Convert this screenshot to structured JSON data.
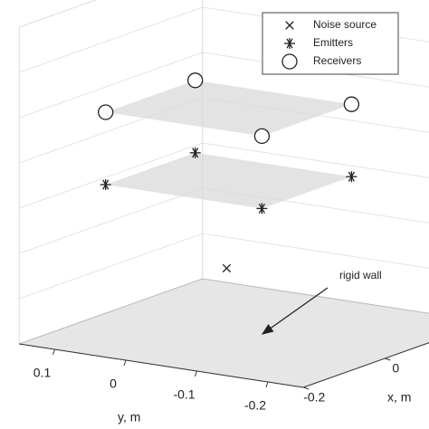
{
  "chart_data": {
    "type": "scatter3d",
    "xlabel": "x, m",
    "ylabel": "y, m",
    "xlim": [
      -0.2,
      0.25
    ],
    "ylim": [
      -0.25,
      0.15
    ],
    "zlim": [
      0,
      0.35
    ],
    "xticks": [
      -0.2,
      0
    ],
    "yticks": [
      0.1,
      0,
      -0.1,
      -0.2
    ],
    "legend": "upper right",
    "annotation": "rigid wall",
    "series": [
      {
        "name": "Noise source",
        "marker": "x",
        "color": "#222222",
        "x": [
          0.1
        ],
        "y": [
          0.03
        ],
        "z": [
          0.05
        ]
      },
      {
        "name": "Emitters",
        "marker": "asterisk",
        "color": "#222222",
        "x": [
          -0.11,
          0.11,
          0.11,
          -0.11
        ],
        "y": [
          0.08,
          0.08,
          -0.14,
          -0.14
        ],
        "z": [
          0.17,
          0.17,
          0.17,
          0.17
        ]
      },
      {
        "name": "Receivers",
        "marker": "circle",
        "color": "#222222",
        "x": [
          -0.11,
          0.11,
          0.11,
          -0.11
        ],
        "y": [
          0.08,
          0.08,
          -0.14,
          -0.14
        ],
        "z": [
          0.25,
          0.25,
          0.25,
          0.25
        ]
      }
    ]
  }
}
